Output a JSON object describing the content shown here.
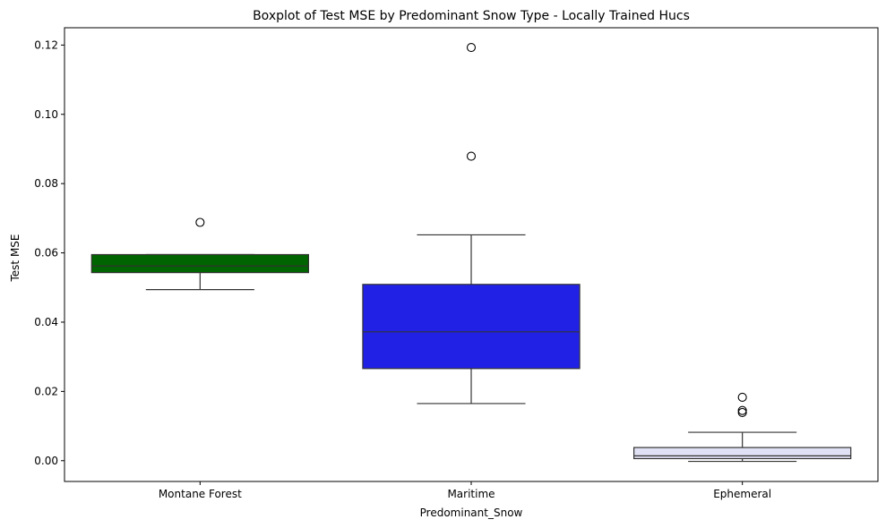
{
  "chart_data": {
    "type": "boxplot",
    "title": "Boxplot of Test MSE by Predominant Snow Type - Locally Trained Hucs",
    "xlabel": "Predominant_Snow",
    "ylabel": "Test MSE",
    "ylim": [
      -0.006,
      0.125
    ],
    "yticks": [
      0.0,
      0.02,
      0.04,
      0.06,
      0.08,
      0.1,
      0.12
    ],
    "ytick_labels": [
      "0.00",
      "0.02",
      "0.04",
      "0.06",
      "0.08",
      "0.10",
      "0.12"
    ],
    "grid": false,
    "categories": [
      "Montane Forest",
      "Maritime",
      "Ephemeral"
    ],
    "boxes": [
      {
        "category": "Montane Forest",
        "color": "#006400",
        "whisker_low": 0.0494,
        "q1": 0.0543,
        "median": 0.0562,
        "q3": 0.0595,
        "whisker_high": 0.0595,
        "outliers": [
          0.0688
        ]
      },
      {
        "category": "Maritime",
        "color": "#2121e6",
        "whisker_low": 0.0165,
        "q1": 0.0266,
        "median": 0.0372,
        "q3": 0.0509,
        "whisker_high": 0.0652,
        "outliers": [
          0.0879,
          0.1193
        ]
      },
      {
        "category": "Ephemeral",
        "color": "#e1e1f5",
        "whisker_low": -0.0002,
        "q1": 0.0006,
        "median": 0.0014,
        "q3": 0.0038,
        "whisker_high": 0.0082,
        "outliers": [
          0.0139,
          0.0145,
          0.0183
        ]
      }
    ]
  }
}
